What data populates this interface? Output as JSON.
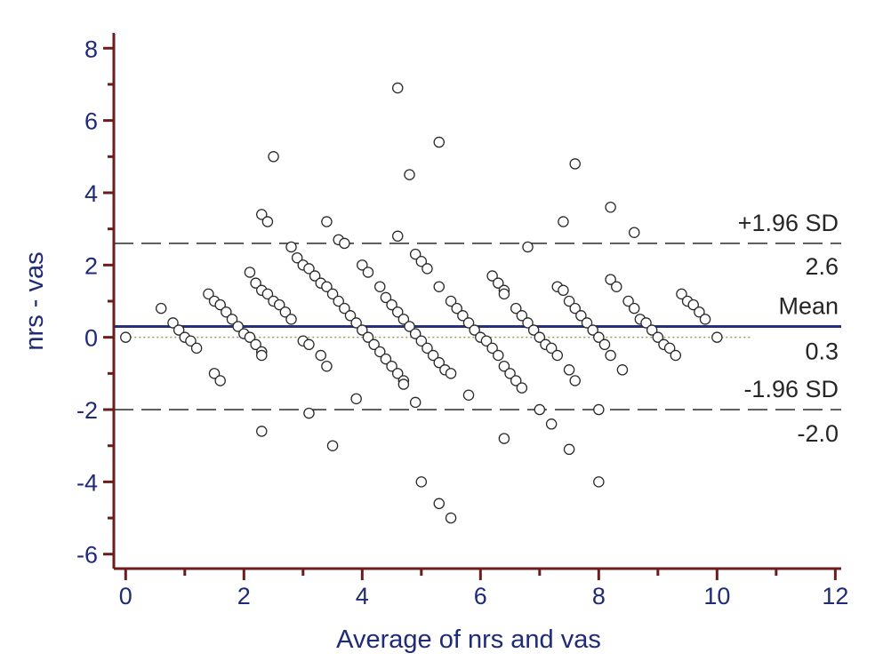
{
  "chart_data": {
    "type": "scatter",
    "xlabel": "Average of nrs and vas",
    "ylabel": "nrs - vas",
    "xlim": [
      -0.2,
      12.1
    ],
    "ylim": [
      -6.4,
      8.4
    ],
    "x_ticks": [
      0,
      2,
      4,
      6,
      8,
      10,
      12
    ],
    "y_ticks": [
      -6,
      -4,
      -2,
      0,
      2,
      4,
      6,
      8
    ],
    "x_minor_ticks": [
      1,
      3,
      5,
      7,
      9,
      11
    ],
    "y_minor_ticks": [
      -5,
      -3,
      -1,
      1,
      3,
      5,
      7
    ],
    "grid": false,
    "colors": {
      "axes": "#6b1c1c",
      "text": "#1f2a78",
      "mean_line": "#27307a",
      "sd_line": "#3a3a3a",
      "zero_line": "#9a9a5a",
      "marker": "#2a2a2a"
    },
    "reference_lines": {
      "mean": {
        "value": 0.3,
        "label": "Mean",
        "value_label": "0.3"
      },
      "upper": {
        "value": 2.6,
        "label": "+1.96 SD",
        "value_label": "2.6"
      },
      "lower": {
        "value": -2.0,
        "label": "-1.96 SD",
        "value_label": "-2.0"
      },
      "zero": {
        "value": 0,
        "x_end": 10.6
      }
    },
    "points": [
      [
        0,
        0
      ],
      [
        0.6,
        0.8
      ],
      [
        0.8,
        0.4
      ],
      [
        0.9,
        0.2
      ],
      [
        1.0,
        0
      ],
      [
        1.1,
        -0.1
      ],
      [
        1.2,
        -0.3
      ],
      [
        1.4,
        1.2
      ],
      [
        1.5,
        1.0
      ],
      [
        1.6,
        0.9
      ],
      [
        1.7,
        0.7
      ],
      [
        1.8,
        0.5
      ],
      [
        1.9,
        0.3
      ],
      [
        1.5,
        -1.0
      ],
      [
        1.6,
        -1.2
      ],
      [
        2.0,
        0.1
      ],
      [
        2.1,
        0
      ],
      [
        2.2,
        -0.2
      ],
      [
        2.3,
        -0.4
      ],
      [
        2.3,
        -0.5
      ],
      [
        2.1,
        1.8
      ],
      [
        2.2,
        1.5
      ],
      [
        2.3,
        1.3
      ],
      [
        2.4,
        1.2
      ],
      [
        2.5,
        1.0
      ],
      [
        2.6,
        0.9
      ],
      [
        2.7,
        0.7
      ],
      [
        2.8,
        0.5
      ],
      [
        2.3,
        3.4
      ],
      [
        2.4,
        3.2
      ],
      [
        2.5,
        5.0
      ],
      [
        2.3,
        -2.6
      ],
      [
        2.8,
        2.5
      ],
      [
        2.9,
        2.2
      ],
      [
        3.0,
        2.0
      ],
      [
        3.1,
        1.9
      ],
      [
        3.2,
        1.7
      ],
      [
        3.3,
        1.5
      ],
      [
        3.4,
        1.4
      ],
      [
        3.5,
        1.2
      ],
      [
        3.6,
        1.0
      ],
      [
        3.7,
        0.8
      ],
      [
        3.8,
        0.6
      ],
      [
        3.9,
        0.4
      ],
      [
        3.0,
        -0.1
      ],
      [
        3.1,
        -0.2
      ],
      [
        3.3,
        -0.5
      ],
      [
        3.4,
        -0.8
      ],
      [
        3.1,
        -2.1
      ],
      [
        3.4,
        3.2
      ],
      [
        3.6,
        2.7
      ],
      [
        3.7,
        2.6
      ],
      [
        3.5,
        -3.0
      ],
      [
        3.9,
        -1.7
      ],
      [
        4.0,
        0.2
      ],
      [
        4.1,
        0
      ],
      [
        4.2,
        -0.2
      ],
      [
        4.3,
        -0.4
      ],
      [
        4.4,
        -0.6
      ],
      [
        4.5,
        -0.8
      ],
      [
        4.6,
        -1.0
      ],
      [
        4.7,
        -1.2
      ],
      [
        4.7,
        -1.3
      ],
      [
        4.0,
        2.0
      ],
      [
        4.1,
        1.8
      ],
      [
        4.3,
        1.4
      ],
      [
        4.4,
        1.1
      ],
      [
        4.5,
        0.9
      ],
      [
        4.6,
        0.7
      ],
      [
        4.7,
        0.5
      ],
      [
        4.8,
        0.3
      ],
      [
        4.9,
        0.1
      ],
      [
        5.0,
        -0.1
      ],
      [
        5.1,
        -0.3
      ],
      [
        4.6,
        6.9
      ],
      [
        4.8,
        4.5
      ],
      [
        4.6,
        2.8
      ],
      [
        4.9,
        2.3
      ],
      [
        5.0,
        2.1
      ],
      [
        5.1,
        1.9
      ],
      [
        5.2,
        -0.5
      ],
      [
        5.3,
        -0.7
      ],
      [
        5.4,
        -0.9
      ],
      [
        5.5,
        -1.0
      ],
      [
        4.9,
        -1.8
      ],
      [
        5.0,
        -4.0
      ],
      [
        5.3,
        -4.6
      ],
      [
        5.5,
        -5.0
      ],
      [
        5.3,
        5.4
      ],
      [
        5.3,
        1.4
      ],
      [
        5.5,
        1.0
      ],
      [
        5.6,
        0.8
      ],
      [
        5.7,
        0.6
      ],
      [
        5.8,
        0.4
      ],
      [
        5.9,
        0.2
      ],
      [
        6.0,
        0
      ],
      [
        6.1,
        -0.1
      ],
      [
        6.2,
        -0.3
      ],
      [
        6.3,
        -0.5
      ],
      [
        6.4,
        -0.8
      ],
      [
        6.5,
        -1.0
      ],
      [
        6.6,
        -1.2
      ],
      [
        6.7,
        -1.4
      ],
      [
        5.8,
        -1.6
      ],
      [
        6.4,
        -2.8
      ],
      [
        6.2,
        1.7
      ],
      [
        6.3,
        1.5
      ],
      [
        6.4,
        1.3
      ],
      [
        6.4,
        1.2
      ],
      [
        6.6,
        0.8
      ],
      [
        6.7,
        0.6
      ],
      [
        6.8,
        0.4
      ],
      [
        6.9,
        0.2
      ],
      [
        7.0,
        0
      ],
      [
        7.1,
        -0.2
      ],
      [
        7.2,
        -0.3
      ],
      [
        7.3,
        -0.5
      ],
      [
        6.8,
        2.5
      ],
      [
        7.0,
        -2.0
      ],
      [
        7.2,
        -2.4
      ],
      [
        7.3,
        1.4
      ],
      [
        7.4,
        1.3
      ],
      [
        7.5,
        1.0
      ],
      [
        7.6,
        0.8
      ],
      [
        7.7,
        0.6
      ],
      [
        7.8,
        0.4
      ],
      [
        7.9,
        0.2
      ],
      [
        8.0,
        0
      ],
      [
        8.1,
        -0.2
      ],
      [
        7.5,
        -0.9
      ],
      [
        7.6,
        -1.2
      ],
      [
        7.6,
        4.8
      ],
      [
        7.4,
        3.2
      ],
      [
        7.5,
        -3.1
      ],
      [
        8.0,
        -2.0
      ],
      [
        8.0,
        -4.0
      ],
      [
        8.2,
        3.6
      ],
      [
        8.2,
        1.6
      ],
      [
        8.3,
        1.4
      ],
      [
        8.5,
        1.0
      ],
      [
        8.6,
        0.8
      ],
      [
        8.7,
        0.5
      ],
      [
        8.8,
        0.4
      ],
      [
        8.9,
        0.2
      ],
      [
        9.0,
        0
      ],
      [
        9.1,
        -0.2
      ],
      [
        9.2,
        -0.3
      ],
      [
        9.3,
        -0.5
      ],
      [
        8.2,
        -0.5
      ],
      [
        8.4,
        -0.9
      ],
      [
        8.6,
        2.9
      ],
      [
        9.4,
        1.2
      ],
      [
        9.5,
        1.0
      ],
      [
        9.6,
        0.9
      ],
      [
        9.7,
        0.7
      ],
      [
        9.8,
        0.5
      ],
      [
        10.0,
        0
      ]
    ]
  }
}
